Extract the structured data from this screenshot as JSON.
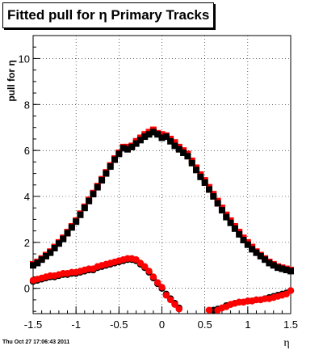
{
  "stamp": "Thu Oct 27 17:06:43 2011",
  "chart_data": {
    "type": "scatter",
    "title": "Fitted pull for η  Primary Tracks",
    "xlabel": "η",
    "ylabel": "pull for η",
    "xlim": [
      -1.5,
      1.5
    ],
    "ylim": [
      -1.1,
      11.0
    ],
    "xticks": [
      -1.5,
      -1,
      -0.5,
      0,
      0.5,
      1,
      1.5
    ],
    "yticks": [
      0,
      2,
      4,
      6,
      8,
      10
    ],
    "grid": true,
    "colors": {
      "black": "#000000",
      "red": "#ff0000"
    },
    "series": [
      {
        "marker": "square",
        "color": "red",
        "x": [
          -1.5,
          -1.45,
          -1.4,
          -1.35,
          -1.3,
          -1.25,
          -1.2,
          -1.15,
          -1.1,
          -1.05,
          -1.0,
          -0.95,
          -0.9,
          -0.85,
          -0.8,
          -0.75,
          -0.7,
          -0.65,
          -0.6,
          -0.55,
          -0.5,
          -0.45,
          -0.4,
          -0.35,
          -0.3,
          -0.25,
          -0.2,
          -0.15,
          -0.1,
          -0.05,
          0.0,
          0.05,
          0.1,
          0.15,
          0.2,
          0.25,
          0.3,
          0.35,
          0.4,
          0.45,
          0.5,
          0.55,
          0.6,
          0.65,
          0.7,
          0.75,
          0.8,
          0.85,
          0.9,
          0.95,
          1.0,
          1.05,
          1.1,
          1.15,
          1.2,
          1.25,
          1.3,
          1.35,
          1.4,
          1.45,
          1.5
        ],
        "y": [
          1.05,
          1.15,
          1.3,
          1.45,
          1.6,
          1.8,
          2.0,
          2.2,
          2.45,
          2.7,
          2.95,
          3.25,
          3.55,
          3.85,
          4.15,
          4.45,
          4.75,
          5.05,
          5.35,
          5.65,
          5.9,
          6.15,
          6.15,
          6.2,
          6.4,
          6.55,
          6.7,
          6.8,
          6.9,
          6.75,
          6.7,
          6.65,
          6.5,
          6.35,
          6.15,
          6.0,
          5.85,
          5.55,
          5.25,
          4.95,
          4.7,
          4.4,
          4.1,
          3.8,
          3.5,
          3.2,
          2.95,
          2.7,
          2.45,
          2.2,
          2.0,
          1.8,
          1.6,
          1.45,
          1.3,
          1.15,
          1.05,
          0.95,
          0.9,
          0.85,
          0.8
        ]
      },
      {
        "marker": "square",
        "color": "black",
        "x": [
          -1.5,
          -1.45,
          -1.4,
          -1.35,
          -1.3,
          -1.25,
          -1.2,
          -1.15,
          -1.1,
          -1.05,
          -1.0,
          -0.95,
          -0.9,
          -0.85,
          -0.8,
          -0.75,
          -0.7,
          -0.65,
          -0.6,
          -0.55,
          -0.5,
          -0.45,
          -0.4,
          -0.35,
          -0.3,
          -0.25,
          -0.2,
          -0.15,
          -0.1,
          -0.05,
          0.0,
          0.05,
          0.1,
          0.15,
          0.2,
          0.25,
          0.3,
          0.35,
          0.4,
          0.45,
          0.5,
          0.55,
          0.6,
          0.65,
          0.7,
          0.75,
          0.8,
          0.85,
          0.9,
          0.95,
          1.0,
          1.05,
          1.1,
          1.15,
          1.2,
          1.25,
          1.3,
          1.35,
          1.4,
          1.45,
          1.5
        ],
        "y": [
          1.0,
          1.1,
          1.25,
          1.4,
          1.55,
          1.75,
          1.95,
          2.15,
          2.4,
          2.65,
          2.9,
          3.2,
          3.5,
          3.8,
          4.1,
          4.4,
          4.7,
          5.0,
          5.3,
          5.6,
          5.85,
          6.1,
          6.05,
          6.15,
          6.3,
          6.45,
          6.6,
          6.7,
          6.8,
          6.7,
          6.55,
          6.6,
          6.4,
          6.2,
          6.05,
          5.9,
          5.75,
          5.45,
          5.15,
          4.85,
          4.6,
          4.3,
          4.0,
          3.7,
          3.4,
          3.1,
          2.85,
          2.6,
          2.35,
          2.1,
          1.9,
          1.7,
          1.55,
          1.4,
          1.25,
          1.1,
          1.0,
          0.9,
          0.85,
          0.8,
          0.75
        ]
      },
      {
        "marker": "circle",
        "color": "black",
        "x": [
          -1.5,
          -1.45,
          -1.4,
          -1.35,
          -1.3,
          -1.25,
          -1.2,
          -1.15,
          -1.1,
          -1.05,
          -1.0,
          -0.95,
          -0.9,
          -0.85,
          -0.8,
          -0.75,
          -0.7,
          -0.65,
          -0.6,
          -0.55,
          -0.5,
          -0.45,
          -0.4,
          -0.35,
          -0.3,
          -0.25,
          -0.2,
          -0.15,
          -0.1,
          -0.05,
          0.0,
          0.05,
          0.1,
          0.15,
          0.2,
          0.6,
          0.65,
          0.7,
          0.75,
          0.8,
          0.85,
          0.9,
          0.95,
          1.0,
          1.05,
          1.1,
          1.15,
          1.2,
          1.25,
          1.3,
          1.35,
          1.4,
          1.45,
          1.5
        ],
        "y": [
          0.3,
          0.35,
          0.4,
          0.45,
          0.5,
          0.5,
          0.55,
          0.6,
          0.6,
          0.65,
          0.65,
          0.7,
          0.75,
          0.8,
          0.8,
          0.9,
          0.95,
          1.0,
          1.05,
          1.1,
          1.15,
          1.2,
          1.25,
          1.25,
          1.2,
          1.05,
          0.9,
          0.7,
          0.45,
          0.2,
          0.0,
          -0.25,
          -0.45,
          -0.65,
          -0.85,
          -0.95,
          -0.9,
          -0.85,
          -0.75,
          -0.7,
          -0.65,
          -0.6,
          -0.6,
          -0.55,
          -0.55,
          -0.5,
          -0.5,
          -0.45,
          -0.4,
          -0.35,
          -0.3,
          -0.25,
          -0.2,
          -0.1
        ]
      },
      {
        "marker": "circle",
        "color": "red",
        "x": [
          -1.5,
          -1.45,
          -1.4,
          -1.35,
          -1.3,
          -1.25,
          -1.2,
          -1.15,
          -1.1,
          -1.05,
          -1.0,
          -0.95,
          -0.9,
          -0.85,
          -0.8,
          -0.75,
          -0.7,
          -0.65,
          -0.6,
          -0.55,
          -0.5,
          -0.45,
          -0.4,
          -0.35,
          -0.3,
          -0.25,
          -0.2,
          -0.15,
          -0.1,
          -0.05,
          0.0,
          0.05,
          0.1,
          0.15,
          0.2,
          0.55,
          0.65,
          0.7,
          0.75,
          0.8,
          0.85,
          0.9,
          0.95,
          1.0,
          1.05,
          1.1,
          1.15,
          1.2,
          1.25,
          1.3,
          1.35,
          1.4,
          1.45,
          1.5
        ],
        "y": [
          0.35,
          0.4,
          0.45,
          0.5,
          0.55,
          0.55,
          0.6,
          0.65,
          0.65,
          0.7,
          0.7,
          0.75,
          0.8,
          0.85,
          0.85,
          0.95,
          1.0,
          1.05,
          1.1,
          1.15,
          1.2,
          1.25,
          1.3,
          1.3,
          1.25,
          1.1,
          0.95,
          0.75,
          0.5,
          0.25,
          0.05,
          -0.3,
          -0.5,
          -0.7,
          -0.9,
          -0.95,
          -0.95,
          -0.85,
          -0.8,
          -0.7,
          -0.65,
          -0.6,
          -0.6,
          -0.55,
          -0.55,
          -0.5,
          -0.5,
          -0.45,
          -0.45,
          -0.4,
          -0.35,
          -0.3,
          -0.25,
          -0.1
        ]
      }
    ]
  }
}
